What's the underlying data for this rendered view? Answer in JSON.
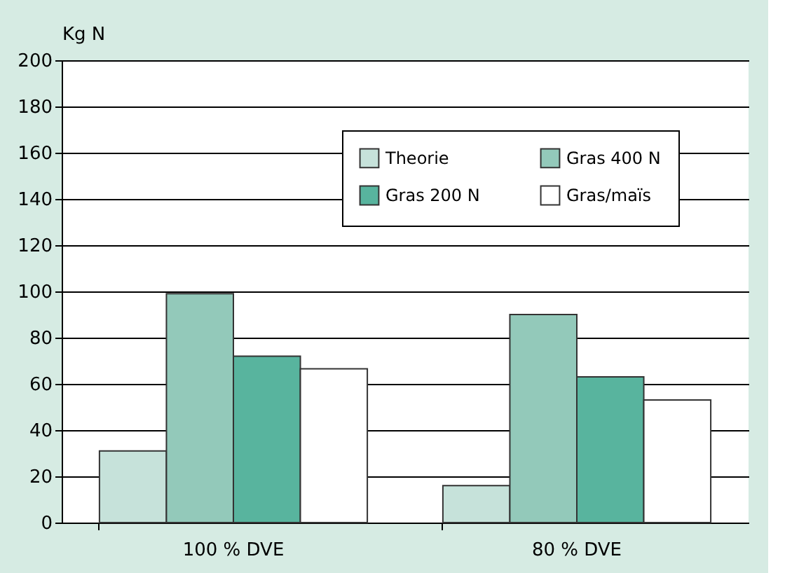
{
  "chart_data": {
    "type": "bar",
    "ylabel": "Kg N",
    "categories": [
      "100 % DVE",
      "80 % DVE"
    ],
    "series": [
      {
        "name": "Theorie",
        "color": "#c6e2da",
        "values": [
          31,
          16
        ]
      },
      {
        "name": "Gras 400 N",
        "color": "#93c9ba",
        "values": [
          99,
          90
        ]
      },
      {
        "name": "Gras 200 N",
        "color": "#58b49e",
        "values": [
          72,
          63
        ]
      },
      {
        "name": "Gras/maïs",
        "color": "#ffffff",
        "values": [
          66.5,
          53
        ]
      }
    ],
    "ylim": [
      0,
      200
    ],
    "yticks": [
      0,
      20,
      40,
      60,
      80,
      100,
      120,
      140,
      160,
      180,
      200
    ],
    "grid": "y",
    "legend": "top right"
  }
}
